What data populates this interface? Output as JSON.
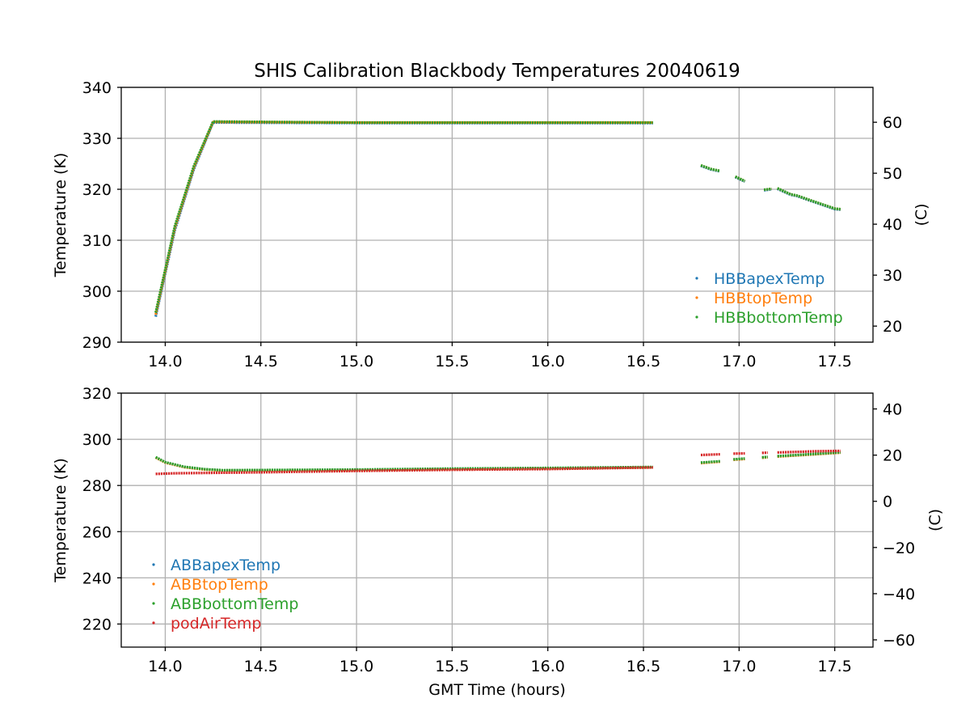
{
  "chart_data": [
    {
      "type": "scatter",
      "title": "SHIS Calibration Blackbody Temperatures 20040619",
      "xlabel": "",
      "ylabel": "Temperature (K)",
      "y2label": "(C)",
      "xlim": [
        13.77,
        17.7
      ],
      "ylim": [
        290,
        340
      ],
      "y2lim": [
        16.85,
        66.85
      ],
      "xticks": [
        14.0,
        14.5,
        15.0,
        15.5,
        16.0,
        16.5,
        17.0,
        17.5
      ],
      "xtick_labels": [
        "14.0",
        "14.5",
        "15.0",
        "15.5",
        "16.0",
        "16.5",
        "17.0",
        "17.5"
      ],
      "yticks": [
        290,
        300,
        310,
        320,
        330,
        340
      ],
      "ytick_labels": [
        "290",
        "300",
        "310",
        "320",
        "330",
        "340"
      ],
      "y2ticks": [
        20,
        30,
        40,
        50,
        60
      ],
      "y2tick_labels": [
        "20",
        "30",
        "40",
        "50",
        "60"
      ],
      "grid": true,
      "legend_position": "lower-right",
      "series": [
        {
          "name": "HBBapexTemp",
          "color": "#1f77b4",
          "segments": [
            [
              [
                13.95,
                295.0
              ],
              [
                14.05,
                312.0
              ],
              [
                14.15,
                324.0
              ],
              [
                14.25,
                333.1
              ],
              [
                15.0,
                333.0
              ],
              [
                16.0,
                333.0
              ],
              [
                16.55,
                333.0
              ]
            ],
            [
              [
                16.8,
                324.6
              ],
              [
                16.85,
                323.9
              ],
              [
                16.9,
                323.5
              ]
            ],
            [
              [
                16.98,
                322.4
              ],
              [
                17.03,
                321.5
              ]
            ],
            [
              [
                17.13,
                319.8
              ],
              [
                17.17,
                320.0
              ]
            ],
            [
              [
                17.2,
                320.1
              ],
              [
                17.27,
                318.9
              ],
              [
                17.3,
                318.7
              ],
              [
                17.4,
                317.4
              ],
              [
                17.5,
                316.1
              ],
              [
                17.53,
                316.0
              ]
            ]
          ]
        },
        {
          "name": "HBBtopTemp",
          "color": "#ff7f0e",
          "segments": [
            [
              [
                13.95,
                295.4
              ],
              [
                14.05,
                312.4
              ],
              [
                14.15,
                324.3
              ],
              [
                14.25,
                333.2
              ],
              [
                15.0,
                333.1
              ],
              [
                16.0,
                333.1
              ],
              [
                16.55,
                333.1
              ]
            ],
            [
              [
                16.8,
                324.7
              ],
              [
                16.85,
                324.0
              ],
              [
                16.9,
                323.6
              ]
            ],
            [
              [
                16.98,
                322.5
              ],
              [
                17.03,
                321.6
              ]
            ],
            [
              [
                17.13,
                319.9
              ],
              [
                17.17,
                320.1
              ]
            ],
            [
              [
                17.2,
                320.2
              ],
              [
                17.27,
                319.0
              ],
              [
                17.3,
                318.8
              ],
              [
                17.4,
                317.5
              ],
              [
                17.5,
                316.2
              ],
              [
                17.53,
                316.1
              ]
            ]
          ]
        },
        {
          "name": "HBBbottomTemp",
          "color": "#2ca02c",
          "segments": [
            [
              [
                13.95,
                295.8
              ],
              [
                14.05,
                312.8
              ],
              [
                14.15,
                324.6
              ],
              [
                14.25,
                333.3
              ],
              [
                15.0,
                333.1
              ],
              [
                16.0,
                333.1
              ],
              [
                16.55,
                333.1
              ]
            ],
            [
              [
                16.8,
                324.7
              ],
              [
                16.85,
                324.0
              ],
              [
                16.9,
                323.6
              ]
            ],
            [
              [
                16.98,
                322.5
              ],
              [
                17.03,
                321.6
              ]
            ],
            [
              [
                17.13,
                319.9
              ],
              [
                17.17,
                320.1
              ]
            ],
            [
              [
                17.2,
                320.2
              ],
              [
                17.27,
                319.0
              ],
              [
                17.3,
                318.8
              ],
              [
                17.4,
                317.5
              ],
              [
                17.5,
                316.2
              ],
              [
                17.53,
                316.1
              ]
            ]
          ]
        }
      ]
    },
    {
      "type": "scatter",
      "title": "",
      "xlabel": "GMT Time (hours)",
      "ylabel": "Temperature (K)",
      "y2label": "(C)",
      "xlim": [
        13.77,
        17.7
      ],
      "ylim": [
        210,
        320
      ],
      "y2lim": [
        -63.15,
        46.85
      ],
      "xticks": [
        14.0,
        14.5,
        15.0,
        15.5,
        16.0,
        16.5,
        17.0,
        17.5
      ],
      "xtick_labels": [
        "14.0",
        "14.5",
        "15.0",
        "15.5",
        "16.0",
        "16.5",
        "17.0",
        "17.5"
      ],
      "yticks": [
        220,
        240,
        260,
        280,
        300,
        320
      ],
      "ytick_labels": [
        "220",
        "240",
        "260",
        "280",
        "300",
        "320"
      ],
      "y2ticks": [
        -60,
        -40,
        -20,
        0,
        20,
        40
      ],
      "y2tick_labels": [
        "−60",
        "−40",
        "−20",
        "0",
        "20",
        "40"
      ],
      "grid": true,
      "legend_position": "lower-left",
      "series": [
        {
          "name": "ABBapexTemp",
          "color": "#1f77b4",
          "segments": [
            [
              [
                13.95,
                292.2
              ],
              [
                14.0,
                290.0
              ],
              [
                14.1,
                288.0
              ],
              [
                14.2,
                287.0
              ],
              [
                14.3,
                286.5
              ],
              [
                15.0,
                286.8
              ],
              [
                15.5,
                287.2
              ],
              [
                16.0,
                287.5
              ],
              [
                16.55,
                287.9
              ]
            ],
            [
              [
                16.8,
                289.8
              ],
              [
                16.9,
                290.4
              ]
            ],
            [
              [
                16.97,
                291.2
              ],
              [
                17.03,
                291.6
              ]
            ],
            [
              [
                17.12,
                292.1
              ],
              [
                17.15,
                292.3
              ]
            ],
            [
              [
                17.2,
                292.6
              ],
              [
                17.4,
                293.6
              ],
              [
                17.53,
                294.3
              ]
            ]
          ]
        },
        {
          "name": "ABBtopTemp",
          "color": "#ff7f0e",
          "segments": [
            [
              [
                13.95,
                292.1
              ],
              [
                14.0,
                289.9
              ],
              [
                14.1,
                287.9
              ],
              [
                14.2,
                286.9
              ],
              [
                14.3,
                286.4
              ],
              [
                15.0,
                286.7
              ],
              [
                15.5,
                287.1
              ],
              [
                16.0,
                287.4
              ],
              [
                16.55,
                287.8
              ]
            ],
            [
              [
                16.8,
                289.7
              ],
              [
                16.9,
                290.3
              ]
            ],
            [
              [
                16.97,
                291.1
              ],
              [
                17.03,
                291.5
              ]
            ],
            [
              [
                17.12,
                292.0
              ],
              [
                17.15,
                292.2
              ]
            ],
            [
              [
                17.2,
                292.5
              ],
              [
                17.4,
                293.5
              ],
              [
                17.53,
                294.2
              ]
            ]
          ]
        },
        {
          "name": "ABBbottomTemp",
          "color": "#2ca02c",
          "segments": [
            [
              [
                13.95,
                292.3
              ],
              [
                14.0,
                290.1
              ],
              [
                14.1,
                288.1
              ],
              [
                14.2,
                287.1
              ],
              [
                14.3,
                286.6
              ],
              [
                15.0,
                286.9
              ],
              [
                15.5,
                287.3
              ],
              [
                16.0,
                287.6
              ],
              [
                16.55,
                288.0
              ]
            ],
            [
              [
                16.8,
                289.9
              ],
              [
                16.9,
                290.5
              ]
            ],
            [
              [
                16.97,
                291.3
              ],
              [
                17.03,
                291.7
              ]
            ],
            [
              [
                17.12,
                292.2
              ],
              [
                17.15,
                292.4
              ]
            ],
            [
              [
                17.2,
                292.7
              ],
              [
                17.4,
                293.7
              ],
              [
                17.53,
                294.4
              ]
            ]
          ]
        },
        {
          "name": "podAirTemp",
          "color": "#d62728",
          "segments": [
            [
              [
                13.95,
                285.0
              ],
              [
                14.05,
                285.3
              ],
              [
                14.5,
                285.7
              ],
              [
                15.0,
                286.3
              ],
              [
                15.5,
                286.8
              ],
              [
                16.0,
                287.1
              ],
              [
                16.55,
                287.8
              ]
            ],
            [
              [
                16.8,
                293.2
              ],
              [
                16.9,
                293.5
              ]
            ],
            [
              [
                16.97,
                293.8
              ],
              [
                17.03,
                293.9
              ]
            ],
            [
              [
                17.12,
                294.1
              ],
              [
                17.15,
                294.2
              ]
            ],
            [
              [
                17.2,
                294.3
              ],
              [
                17.4,
                294.8
              ],
              [
                17.53,
                295.0
              ]
            ]
          ]
        }
      ]
    }
  ]
}
